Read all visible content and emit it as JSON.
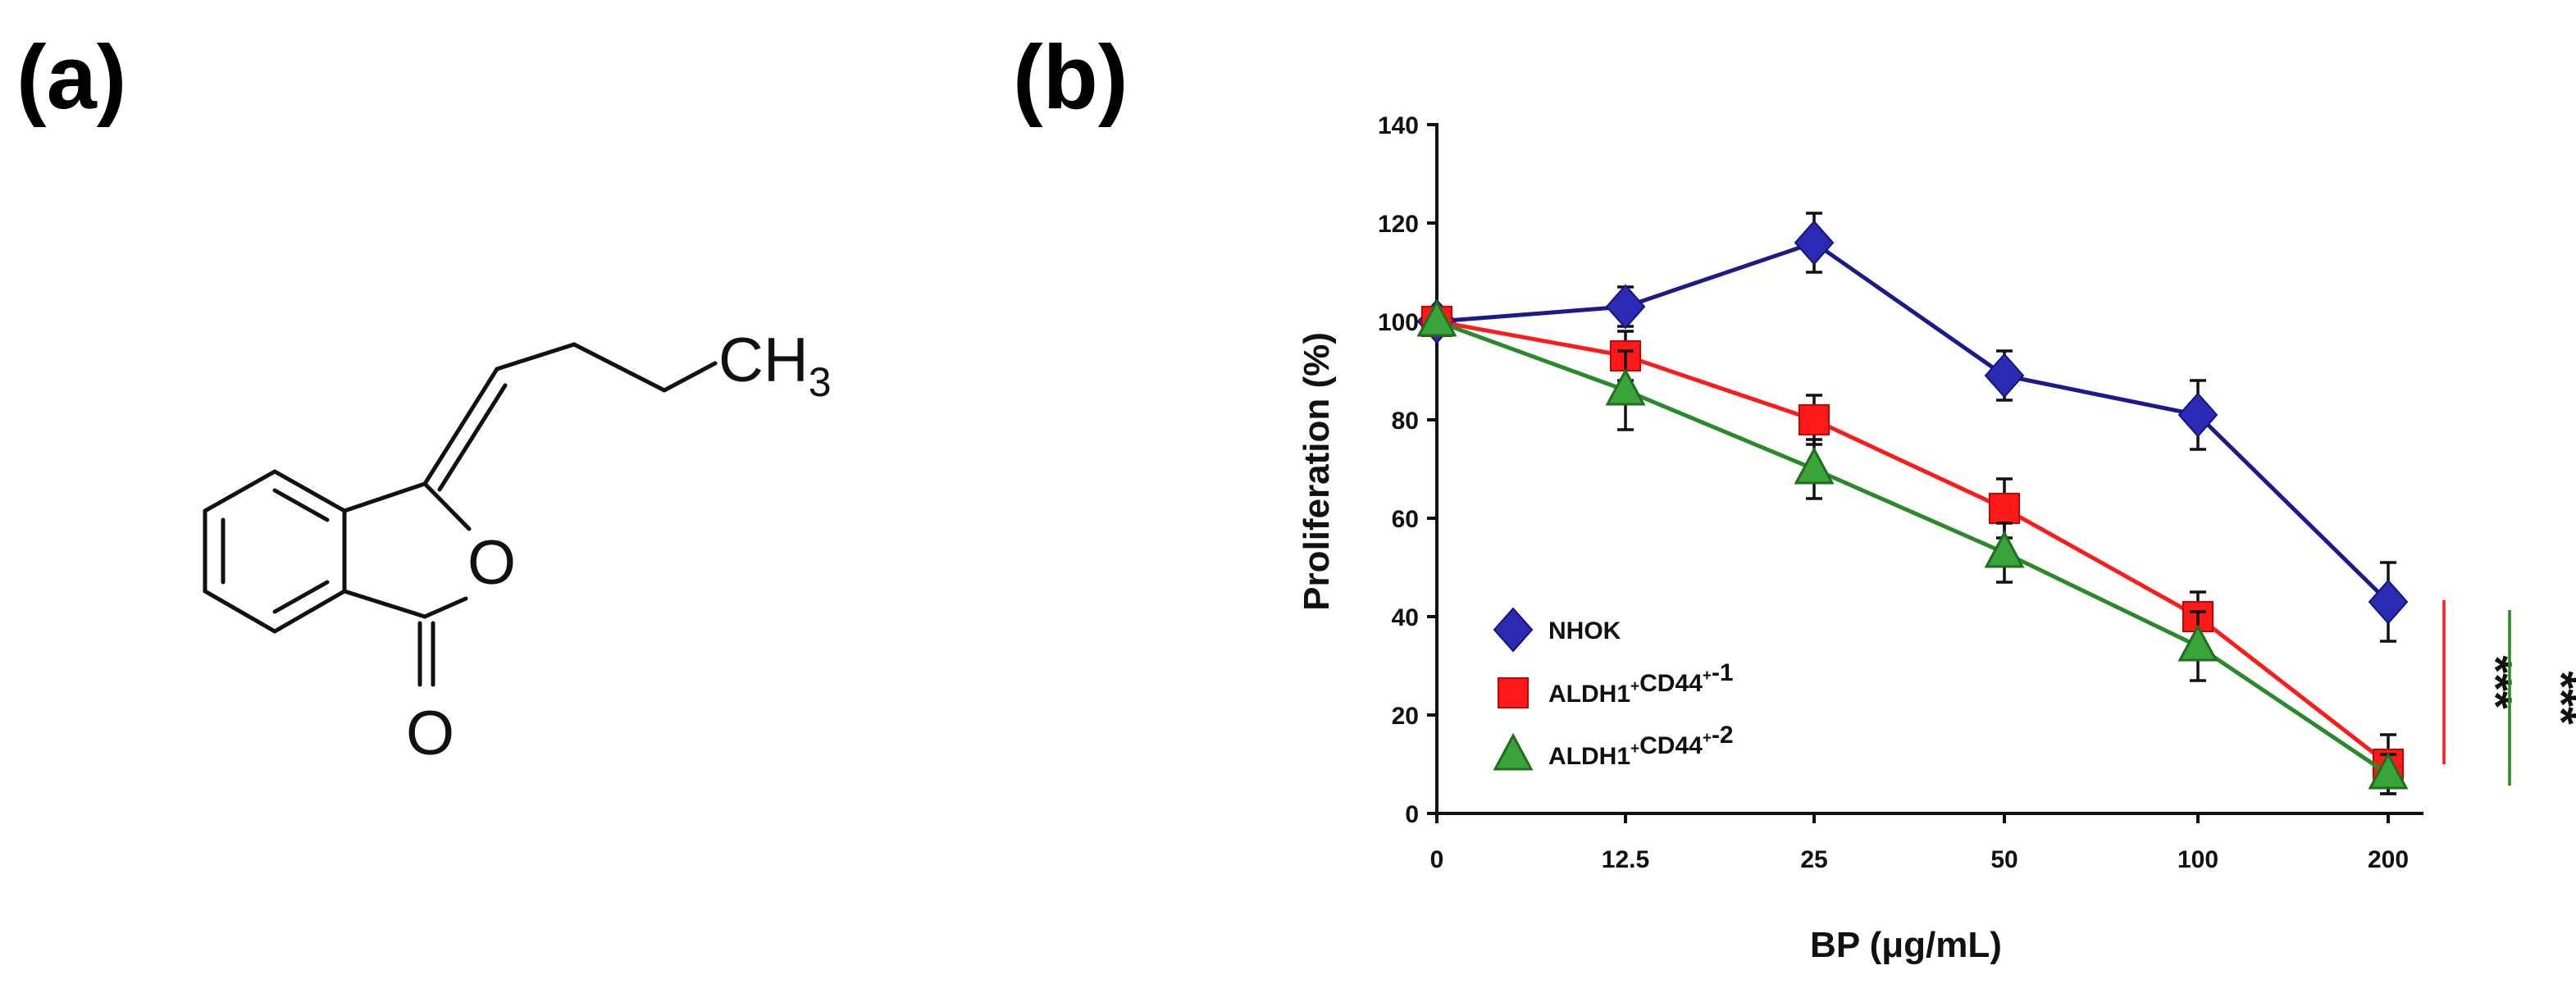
{
  "panel_a": {
    "label": "(a)",
    "atoms": {
      "methyl_C": "CH",
      "methyl_sub": "3",
      "ring_O": "O",
      "carbonyl_O": "O"
    }
  },
  "panel_b": {
    "label": "(b)"
  },
  "chart_data": {
    "type": "line",
    "categories": [
      "0",
      "12.5",
      "25",
      "50",
      "100",
      "200"
    ],
    "xlabel": "BP (μg/mL)",
    "ylabel": "Proliferation (%)",
    "ylim": [
      0,
      140
    ],
    "yticks": [
      0,
      20,
      40,
      60,
      80,
      100,
      120,
      140
    ],
    "grid": false,
    "legend_position": "bottom-left",
    "series": [
      {
        "name": "NHOK",
        "name_parts": [
          "NHOK"
        ],
        "marker": "diamond",
        "color": "#2a2ab5",
        "line_color": "#1a1a8c",
        "values": [
          100,
          103,
          116,
          89,
          81,
          43
        ],
        "errors": [
          0,
          4,
          6,
          5,
          7,
          8
        ]
      },
      {
        "name": "ALDH1+CD44+-1",
        "name_parts": [
          "ALDH1",
          "+",
          "CD44",
          "+",
          "-1"
        ],
        "marker": "square",
        "color": "#ff1a1a",
        "line_color": "#ff1a1a",
        "values": [
          100,
          93,
          80,
          62,
          40,
          10
        ],
        "errors": [
          0,
          5,
          5,
          6,
          5,
          6
        ]
      },
      {
        "name": "ALDH1+CD44+-2",
        "name_parts": [
          "ALDH1",
          "+",
          "CD44",
          "+",
          "-2"
        ],
        "marker": "triangle",
        "color": "#3aa33a",
        "line_color": "#2a8a2a",
        "values": [
          100,
          86,
          70,
          53,
          34,
          8
        ],
        "errors": [
          0,
          8,
          6,
          6,
          7,
          4
        ]
      }
    ],
    "annotations": [
      {
        "text": "***",
        "color": "#ff1a1a"
      },
      {
        "text": "***",
        "color": "#2a8a2a"
      }
    ]
  }
}
